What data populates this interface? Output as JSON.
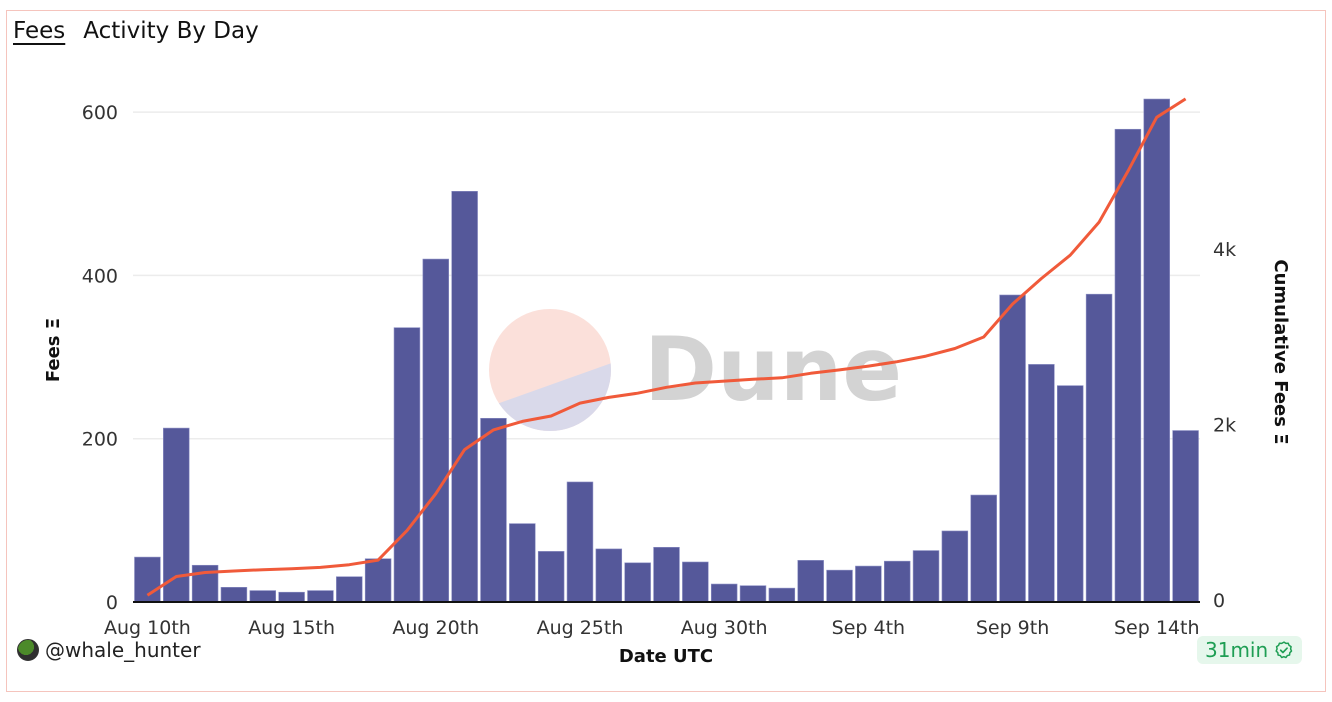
{
  "header": {
    "tab_label": "Fees",
    "subtitle": "Activity By Day"
  },
  "footer": {
    "username": "@whale_hunter",
    "freshness": "31min",
    "verified_icon": "badge-check-icon"
  },
  "watermark": {
    "text": "Dune"
  },
  "colors": {
    "bar": "#55589a",
    "line": "#f05a3a",
    "grid": "#ececec",
    "card_border": "#f5c4bd",
    "badge_bg": "#e6f7ec",
    "badge_text": "#1f9e54"
  },
  "chart_data": {
    "type": "bar+line",
    "title": "Fees",
    "subtitle": "Activity By Day",
    "xlabel": "Date UTC",
    "ylabel": "Fees Ξ",
    "y2label": "Cumulative Fees Ξ",
    "ylim": [
      0,
      620
    ],
    "y2lim": [
      0,
      5700
    ],
    "yticks": [
      0,
      200,
      400,
      600
    ],
    "ytick_labels": [
      "0",
      "200",
      "400",
      "600"
    ],
    "y2ticks": [
      0,
      2000,
      4000
    ],
    "y2tick_labels": [
      "0",
      "2k",
      "4k"
    ],
    "grid": true,
    "xtick_labels": [
      "Aug 10th",
      "Aug 15th",
      "Aug 20th",
      "Aug 25th",
      "Aug 30th",
      "Sep 4th",
      "Sep 9th",
      "Sep 14th"
    ],
    "xtick_indices": [
      0,
      5,
      10,
      15,
      20,
      25,
      30,
      35
    ],
    "categories": [
      "Aug 10",
      "Aug 11",
      "Aug 12",
      "Aug 13",
      "Aug 14",
      "Aug 15",
      "Aug 16",
      "Aug 17",
      "Aug 18",
      "Aug 19",
      "Aug 20",
      "Aug 21",
      "Aug 22",
      "Aug 23",
      "Aug 24",
      "Aug 25",
      "Aug 26",
      "Aug 27",
      "Aug 28",
      "Aug 29",
      "Aug 30",
      "Aug 31",
      "Sep 1",
      "Sep 2",
      "Sep 3",
      "Sep 4",
      "Sep 5",
      "Sep 6",
      "Sep 7",
      "Sep 8",
      "Sep 9",
      "Sep 10",
      "Sep 11",
      "Sep 12",
      "Sep 13",
      "Sep 14",
      "Sep 15"
    ],
    "series": [
      {
        "name": "Fees",
        "type": "bar",
        "axis": "left",
        "values": [
          55,
          213,
          45,
          18,
          14,
          12,
          14,
          31,
          53,
          336,
          420,
          503,
          225,
          96,
          62,
          147,
          65,
          48,
          67,
          49,
          22,
          20,
          17,
          51,
          39,
          44,
          50,
          63,
          87,
          131,
          376,
          291,
          265,
          377,
          579,
          616,
          210
        ]
      },
      {
        "name": "Cumulative Fees",
        "type": "line",
        "axis": "right",
        "values": [
          55,
          268,
          313,
          331,
          345,
          357,
          371,
          402,
          455,
          791,
          1211,
          1714,
          1939,
          2035,
          2097,
          2244,
          2309,
          2357,
          2424,
          2473,
          2495,
          2515,
          2532,
          2583,
          2622,
          2666,
          2716,
          2779,
          2866,
          2997,
          3373,
          3664,
          3929,
          4306,
          4885,
          5501,
          5711
        ]
      }
    ],
    "legend": "none"
  }
}
